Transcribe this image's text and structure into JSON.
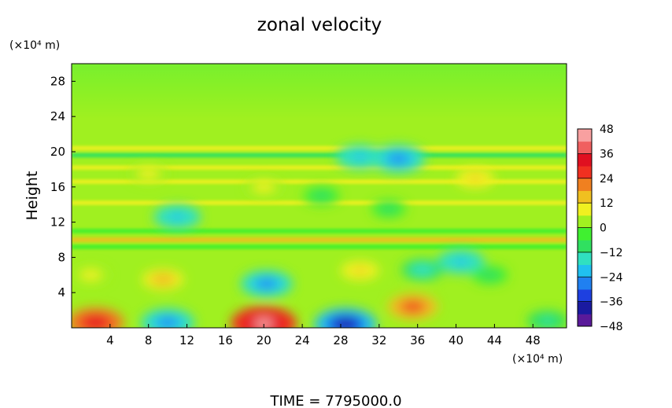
{
  "chart_data": {
    "type": "heatmap",
    "title": "zonal velocity",
    "xlabel": "",
    "ylabel": "Height",
    "x_unit": "(×10⁴ m)",
    "y_unit": "(×10⁴ m)",
    "xlim": [
      0,
      51.5
    ],
    "ylim": [
      0,
      30
    ],
    "x_ticks": [
      4,
      8,
      12,
      16,
      20,
      24,
      28,
      32,
      36,
      40,
      44,
      48
    ],
    "y_ticks": [
      4,
      8,
      12,
      16,
      20,
      24,
      28
    ],
    "x_tick_labels": [
      "4",
      "8",
      "12",
      "16",
      "20",
      "24",
      "28",
      "32",
      "36",
      "40",
      "44",
      "48"
    ],
    "y_tick_labels": [
      "4",
      "8",
      "12",
      "16",
      "20",
      "24",
      "28"
    ],
    "colorbar": {
      "min": -48,
      "max": 48,
      "ticks": [
        48,
        36,
        24,
        12,
        0,
        -12,
        -24,
        -36,
        -48
      ],
      "tick_labels": [
        "48",
        "36",
        "24",
        "12",
        "0",
        "−12",
        "−24",
        "−36",
        "−48"
      ],
      "colors": [
        "#5a1a9a",
        "#1a1aa0",
        "#1e40e0",
        "#2080f0",
        "#20c0f0",
        "#30e0c0",
        "#30e060",
        "#40f030",
        "#a0f020",
        "#f0f020",
        "#f0c020",
        "#f08020",
        "#f03020",
        "#e01020",
        "#f06060",
        "#f8a0a0"
      ]
    },
    "background_value": 3,
    "features": [
      {
        "x": 20,
        "y": 0.5,
        "value": 44
      },
      {
        "x": 28.5,
        "y": 0.4,
        "value": -40
      },
      {
        "x": 10,
        "y": 0.6,
        "value": -30
      },
      {
        "x": 2.5,
        "y": 0.6,
        "value": 34
      },
      {
        "x": 49.5,
        "y": 0.8,
        "value": -14
      },
      {
        "x": 35.5,
        "y": 2.4,
        "value": 26
      },
      {
        "x": 20.3,
        "y": 5.0,
        "value": -28
      },
      {
        "x": 9.5,
        "y": 5.5,
        "value": 16
      },
      {
        "x": 2.0,
        "y": 6.0,
        "value": 10
      },
      {
        "x": 30,
        "y": 6.5,
        "value": 12
      },
      {
        "x": 40.5,
        "y": 7.5,
        "value": -22
      },
      {
        "x": 36.5,
        "y": 6.6,
        "value": -16
      },
      {
        "x": 43.5,
        "y": 6.0,
        "value": -10
      },
      {
        "x": 11,
        "y": 12.6,
        "value": -22
      },
      {
        "x": 26,
        "y": 15.0,
        "value": -10
      },
      {
        "x": 33,
        "y": 13.5,
        "value": -8
      },
      {
        "x": 34,
        "y": 19.2,
        "value": -30
      },
      {
        "x": 30,
        "y": 19.4,
        "value": -22
      },
      {
        "x": 20,
        "y": 16.0,
        "value": 10
      },
      {
        "x": 42,
        "y": 17.0,
        "value": 12
      },
      {
        "x": 8,
        "y": 17.5,
        "value": 10
      }
    ],
    "horizontal_bands": [
      {
        "y": 19.6,
        "value": -10
      },
      {
        "y": 20.4,
        "value": 10
      },
      {
        "y": 10.0,
        "value": 12
      },
      {
        "y": 11.0,
        "value": -4
      },
      {
        "y": 9.2,
        "value": -6
      },
      {
        "y": 14.2,
        "value": 8
      },
      {
        "y": 16.6,
        "value": 8
      },
      {
        "y": 18.2,
        "value": 6
      }
    ],
    "footer": "TIME  =  7795000.0"
  }
}
